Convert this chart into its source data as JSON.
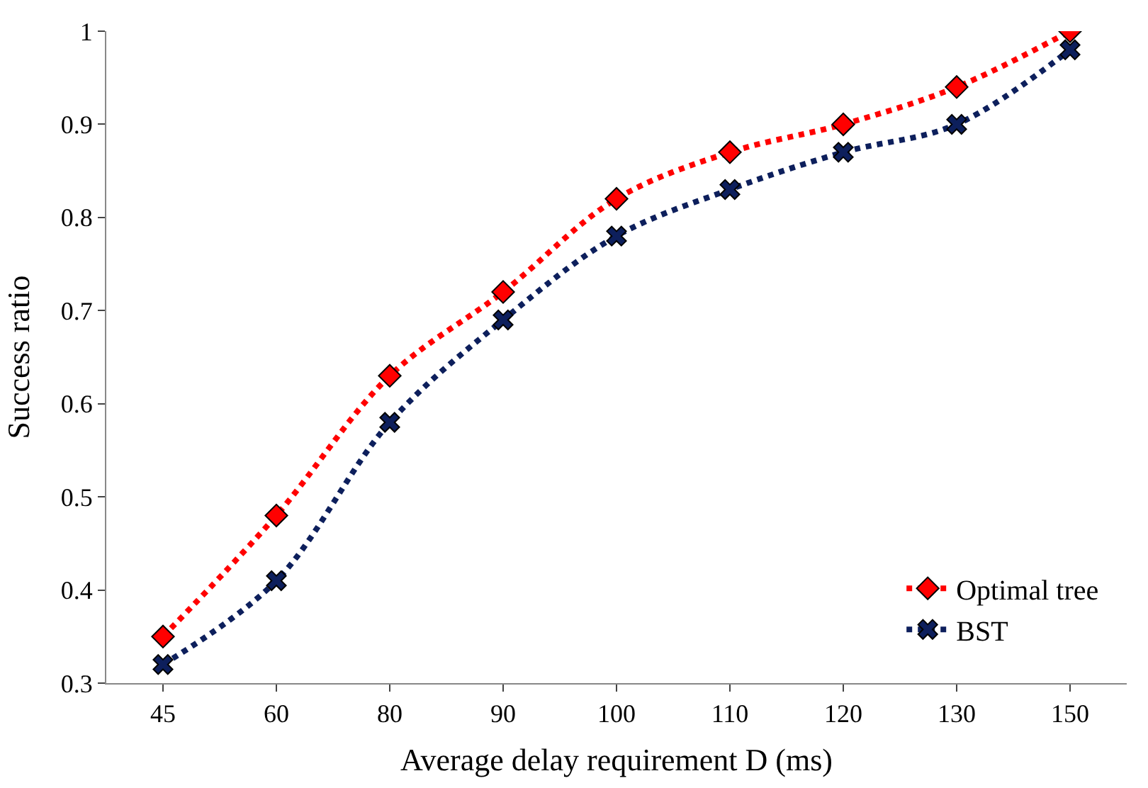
{
  "chart_data": {
    "type": "line",
    "xlabel": "Average delay requirement D (ms)",
    "ylabel": "Success ratio",
    "categories": [
      "45",
      "60",
      "80",
      "90",
      "100",
      "110",
      "120",
      "130",
      "150"
    ],
    "series": [
      {
        "name": "Optimal tree",
        "color": "#ff0000",
        "marker": "diamond",
        "values": [
          0.35,
          0.48,
          0.63,
          0.72,
          0.82,
          0.87,
          0.9,
          0.94,
          1.0
        ]
      },
      {
        "name": "BST",
        "color": "#0d1f5c",
        "marker": "cross",
        "values": [
          0.32,
          0.41,
          0.58,
          0.69,
          0.78,
          0.83,
          0.87,
          0.9,
          0.98
        ]
      }
    ],
    "ylim": [
      0.3,
      1
    ],
    "yticks": [
      0.3,
      0.4,
      0.5,
      0.6,
      0.7,
      0.8,
      0.9,
      1
    ],
    "line_style": "dotted",
    "legend": "bottom right"
  }
}
